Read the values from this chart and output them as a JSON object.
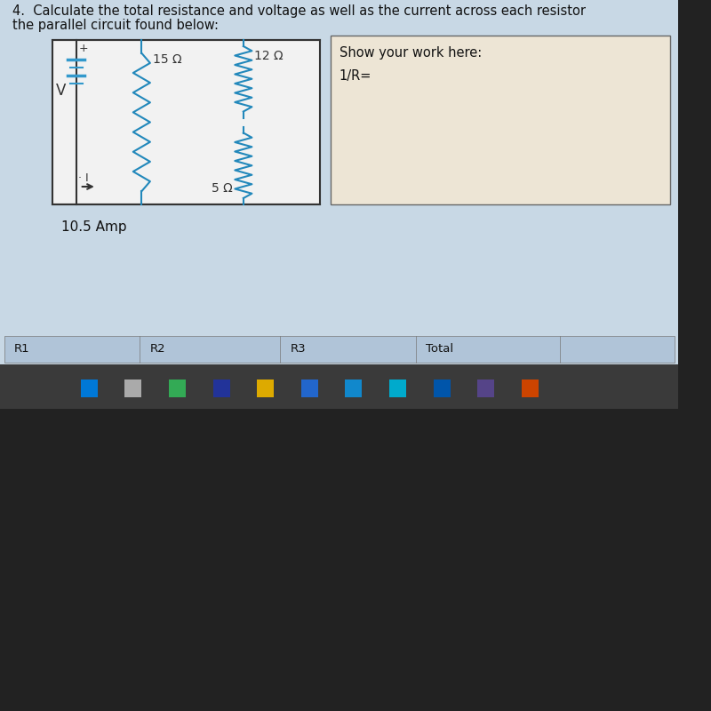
{
  "title_line1": "4.  Calculate the total resistance and voltage as well as the current across each resistor",
  "title_line2": "the parallel circuit found below:",
  "resistor1_label": "15 Ω",
  "resistor2_label": "12 Ω",
  "resistor3_label": "5 Ω",
  "current_label": "10.5 Amp",
  "show_work_label": "Show your work here:",
  "one_over_r_label": "1/R=",
  "table_headers": [
    "R1",
    "R2",
    "R3",
    "Total"
  ],
  "screen_bg": "#c8d8e5",
  "circuit_box_bg": "#f2f2f2",
  "work_box_bg": "#ede5d5",
  "table_bg": "#b0c4d8",
  "taskbar_bg": "#3a3a3a",
  "keyboard_bg": "#222222",
  "battery_color": "#3399cc",
  "resistor_color": "#2288bb",
  "wire_color": "#333333",
  "text_color": "#111111"
}
